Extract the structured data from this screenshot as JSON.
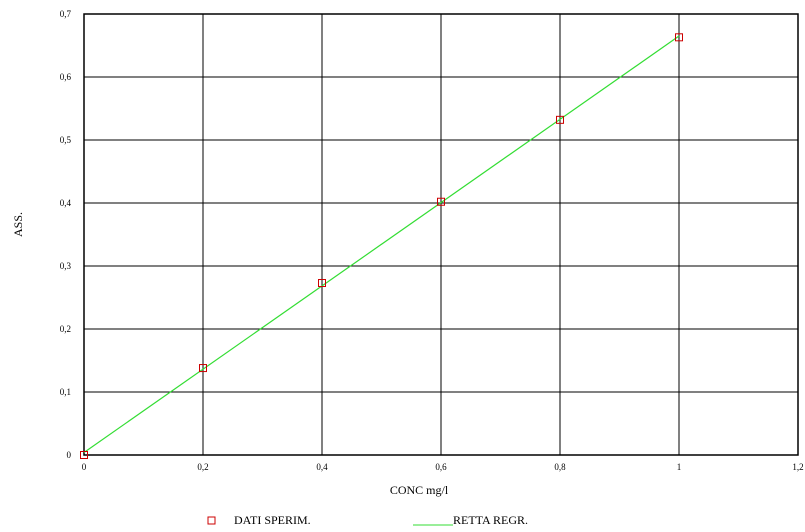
{
  "chart_data": {
    "type": "scatter",
    "xlabel": "CONC mg/l",
    "ylabel": "ASS.",
    "xlim": [
      0,
      1.2
    ],
    "ylim": [
      0,
      0.7
    ],
    "x_ticks": [
      "0",
      "0,2",
      "0,4",
      "0,6",
      "0,8",
      "1",
      "1,2"
    ],
    "y_ticks": [
      "0",
      "0,1",
      "0,2",
      "0,3",
      "0,4",
      "0,5",
      "0,6",
      "0,7"
    ],
    "x_tick_values": [
      0,
      0.2,
      0.4,
      0.6,
      0.8,
      1.0,
      1.2
    ],
    "y_tick_values": [
      0,
      0.1,
      0.2,
      0.3,
      0.4,
      0.5,
      0.6,
      0.7
    ],
    "grid": true,
    "legend_position": "bottom",
    "series": [
      {
        "name": "DATI SPERIM.",
        "kind": "markers",
        "marker": "square",
        "color": "#cc0000",
        "x": [
          0,
          0.2,
          0.4,
          0.6,
          0.8,
          1.0
        ],
        "y": [
          0,
          0.138,
          0.273,
          0.402,
          0.532,
          0.663
        ]
      },
      {
        "name": "RETTA REGR.",
        "kind": "line",
        "color": "#33dd33",
        "x": [
          0,
          1.0
        ],
        "y": [
          0.004,
          0.665
        ]
      }
    ]
  }
}
